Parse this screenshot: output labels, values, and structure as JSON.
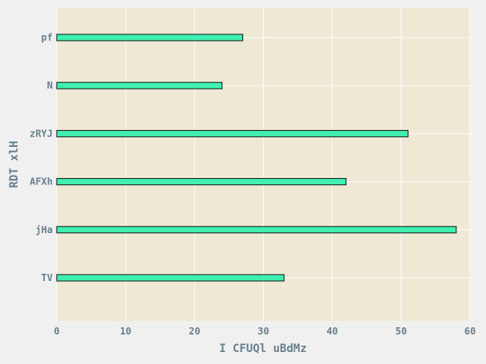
{
  "chart_data": {
    "type": "bar",
    "orientation": "horizontal",
    "categories": [
      "TV",
      "jHa",
      "AFXh",
      "zRYJ",
      "N",
      "pf"
    ],
    "values": [
      33,
      58,
      42,
      51,
      24,
      27
    ],
    "title": "",
    "xlabel": "I CFUQl  uBdMz",
    "ylabel": "RDT xlH",
    "xlim": [
      0,
      60
    ],
    "xticks": [
      0,
      10,
      20,
      30,
      40,
      50,
      60
    ],
    "grid": true,
    "legend": "none",
    "colors": {
      "background": "#f0f0f0",
      "plot_background": "#efe8d5",
      "bar_fill": "#3ff0b0",
      "bar_edge": "#111111",
      "grid": "#ffffff",
      "text": "#6a7f8d"
    }
  }
}
